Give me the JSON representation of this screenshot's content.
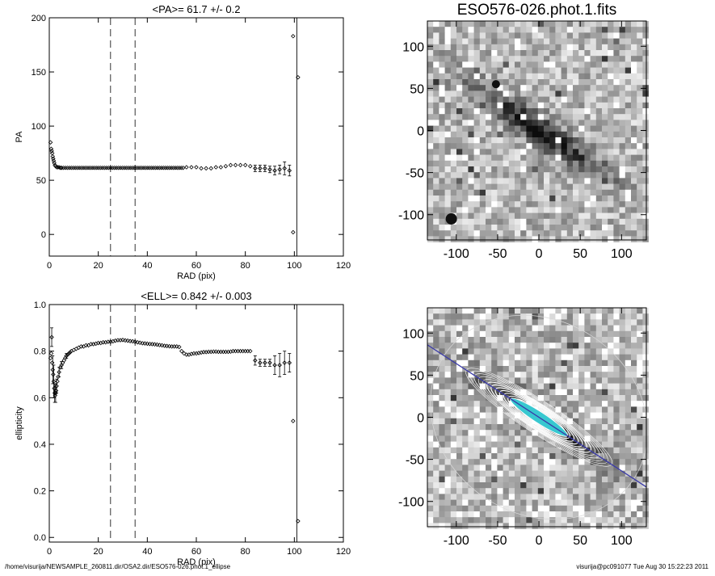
{
  "footer": {
    "path": "/home/visurija/NEWSAMPLE_260811.dir/OSA2.dir/ESO576-026.phot.1_ellipse",
    "stamp": "visurija@pc091077  Tue Aug 30 15:22:23 2011"
  },
  "chart_data": [
    {
      "type": "scatter",
      "title": "<PA>=  61.7 +/-   0.2",
      "xlabel": "RAD (pix)",
      "ylabel": "PA",
      "xlim": [
        0,
        120
      ],
      "ylim": [
        -20,
        200
      ],
      "x_ticks": [
        0,
        20,
        40,
        60,
        80,
        100,
        120
      ],
      "y_ticks": [
        0,
        50,
        100,
        150,
        200
      ],
      "marker": "diamond",
      "error_bars": true,
      "vlines_dashed": [
        25,
        35
      ],
      "vline_solid": 101,
      "dense_points": [
        [
          0.5,
          85
        ],
        [
          0.8,
          79
        ],
        [
          1.0,
          77
        ],
        [
          1.2,
          75
        ],
        [
          1.4,
          72
        ],
        [
          1.6,
          70
        ],
        [
          1.8,
          68
        ],
        [
          2.0,
          66
        ],
        [
          2.3,
          64
        ],
        [
          2.6,
          63
        ],
        [
          3.0,
          62
        ],
        [
          3.5,
          62
        ],
        [
          4.0,
          62
        ],
        [
          4.5,
          61.5
        ],
        [
          5.0,
          61.5
        ]
      ],
      "dense_range": [
        5,
        55
      ],
      "dense_value": 61.5,
      "points": [
        [
          56,
          62
        ],
        [
          58,
          62
        ],
        [
          60,
          62
        ],
        [
          62,
          61
        ],
        [
          64,
          61
        ],
        [
          66,
          61
        ],
        [
          68,
          62
        ],
        [
          70,
          62
        ],
        [
          72,
          63
        ],
        [
          74,
          64
        ],
        [
          76,
          64
        ],
        [
          78,
          64
        ],
        [
          80,
          64
        ],
        [
          82,
          63
        ],
        [
          84,
          61
        ],
        [
          86,
          61
        ],
        [
          88,
          61
        ],
        [
          90,
          60
        ],
        [
          92,
          59
        ],
        [
          94,
          60
        ],
        [
          96,
          61
        ],
        [
          98,
          59
        ]
      ],
      "errors": [
        [
          84,
          3
        ],
        [
          86,
          3
        ],
        [
          88,
          3
        ],
        [
          90,
          3
        ],
        [
          92,
          4
        ],
        [
          94,
          4
        ],
        [
          96,
          6
        ],
        [
          98,
          5
        ]
      ],
      "outliers": [
        [
          99.5,
          183
        ],
        [
          101.5,
          145
        ],
        [
          99.5,
          2
        ]
      ]
    },
    {
      "type": "scatter",
      "title": "<ELL>= 0.842 +/-  0.003",
      "xlabel": "RAD (pix)",
      "ylabel": "ellipticity",
      "xlim": [
        0,
        120
      ],
      "ylim": [
        -0.02,
        1.0
      ],
      "x_ticks": [
        0,
        20,
        40,
        60,
        80,
        100,
        120
      ],
      "y_ticks": [
        0.0,
        0.2,
        0.4,
        0.6,
        0.8,
        1.0
      ],
      "marker": "diamond",
      "error_bars": true,
      "vlines_dashed": [
        25,
        35
      ],
      "vline_solid": 101,
      "points": [
        [
          0.5,
          0.77
        ],
        [
          0.8,
          0.79
        ],
        [
          1.0,
          0.86
        ],
        [
          1.2,
          0.75
        ],
        [
          1.4,
          0.72
        ],
        [
          1.6,
          0.7
        ],
        [
          1.8,
          0.67
        ],
        [
          2.0,
          0.64
        ],
        [
          2.2,
          0.62
        ],
        [
          2.4,
          0.61
        ],
        [
          2.6,
          0.62
        ],
        [
          2.8,
          0.63
        ],
        [
          3.0,
          0.65
        ],
        [
          3.3,
          0.67
        ],
        [
          3.6,
          0.69
        ],
        [
          4.0,
          0.71
        ],
        [
          4.5,
          0.73
        ],
        [
          5.0,
          0.74
        ],
        [
          5.5,
          0.75
        ],
        [
          6.0,
          0.76
        ],
        [
          6.5,
          0.77
        ],
        [
          7.0,
          0.78
        ],
        [
          7.5,
          0.785
        ],
        [
          8.0,
          0.79
        ],
        [
          8.5,
          0.795
        ],
        [
          9,
          0.8
        ],
        [
          10,
          0.805
        ],
        [
          11,
          0.81
        ],
        [
          12,
          0.815
        ],
        [
          13,
          0.82
        ],
        [
          14,
          0.82
        ],
        [
          15,
          0.825
        ],
        [
          16,
          0.825
        ],
        [
          17,
          0.83
        ],
        [
          18,
          0.83
        ],
        [
          19,
          0.832
        ],
        [
          20,
          0.835
        ],
        [
          21,
          0.835
        ],
        [
          22,
          0.838
        ],
        [
          23,
          0.838
        ],
        [
          24,
          0.84
        ],
        [
          25,
          0.84
        ],
        [
          26,
          0.842
        ],
        [
          27,
          0.845
        ],
        [
          28,
          0.847
        ],
        [
          29,
          0.847
        ],
        [
          30,
          0.848
        ],
        [
          31,
          0.846
        ],
        [
          32,
          0.845
        ],
        [
          33,
          0.843
        ],
        [
          34,
          0.842
        ],
        [
          35,
          0.84
        ],
        [
          36,
          0.838
        ],
        [
          37,
          0.836
        ],
        [
          38,
          0.834
        ],
        [
          39,
          0.833
        ],
        [
          40,
          0.832
        ],
        [
          41,
          0.831
        ],
        [
          42,
          0.83
        ],
        [
          43,
          0.829
        ],
        [
          44,
          0.828
        ],
        [
          45,
          0.826
        ],
        [
          46,
          0.825
        ],
        [
          47,
          0.823
        ],
        [
          48,
          0.822
        ],
        [
          49,
          0.821
        ],
        [
          50,
          0.82
        ],
        [
          51,
          0.82
        ],
        [
          52,
          0.82
        ],
        [
          53,
          0.818
        ],
        [
          54,
          0.8
        ],
        [
          55,
          0.79
        ],
        [
          56,
          0.785
        ],
        [
          57,
          0.785
        ],
        [
          58,
          0.788
        ],
        [
          59,
          0.79
        ],
        [
          60,
          0.79
        ],
        [
          61,
          0.792
        ],
        [
          62,
          0.794
        ],
        [
          63,
          0.796
        ],
        [
          64,
          0.796
        ],
        [
          65,
          0.797
        ],
        [
          66,
          0.797
        ],
        [
          67,
          0.798
        ],
        [
          68,
          0.798
        ],
        [
          69,
          0.797
        ],
        [
          70,
          0.797
        ],
        [
          71,
          0.797
        ],
        [
          72,
          0.797
        ],
        [
          73,
          0.797
        ],
        [
          74,
          0.798
        ],
        [
          75,
          0.8
        ],
        [
          76,
          0.8
        ],
        [
          77,
          0.8
        ],
        [
          78,
          0.8
        ],
        [
          79,
          0.8
        ],
        [
          80,
          0.8
        ],
        [
          81,
          0.8
        ],
        [
          82,
          0.8
        ],
        [
          84,
          0.76
        ],
        [
          86,
          0.75
        ],
        [
          88,
          0.75
        ],
        [
          90,
          0.75
        ],
        [
          92,
          0.74
        ],
        [
          94,
          0.74
        ],
        [
          96,
          0.75
        ],
        [
          98,
          0.75
        ]
      ],
      "errors": [
        [
          1.0,
          0.04
        ],
        [
          1.4,
          0.06
        ],
        [
          1.8,
          0.07
        ],
        [
          2.2,
          0.04
        ],
        [
          2.6,
          0.04
        ],
        [
          3.0,
          0.03
        ],
        [
          4.0,
          0.02
        ],
        [
          5.0,
          0.015
        ],
        [
          7.0,
          0.01
        ],
        [
          84,
          0.02
        ],
        [
          86,
          0.015
        ],
        [
          88,
          0.015
        ],
        [
          90,
          0.015
        ],
        [
          92,
          0.04
        ],
        [
          94,
          0.05
        ],
        [
          96,
          0.05
        ],
        [
          98,
          0.04
        ]
      ],
      "outliers": [
        [
          99.5,
          0.5
        ],
        [
          101.5,
          0.07
        ]
      ]
    }
  ],
  "images": {
    "top": {
      "title": "ESO576-026.phot.1.fits",
      "xlim": [
        -135,
        130
      ],
      "ylim": [
        -130,
        130
      ],
      "x_ticks": [
        -100,
        -50,
        0,
        50,
        100
      ],
      "y_ticks": [
        -100,
        -50,
        0,
        50,
        100
      ]
    },
    "bottom": {
      "xlim": [
        -135,
        130
      ],
      "ylim": [
        -130,
        130
      ],
      "x_ticks": [
        -100,
        -50,
        0,
        50,
        100
      ],
      "y_ticks": [
        -100,
        -50,
        0,
        50,
        100
      ],
      "major_axis_pa_deg": 61.7,
      "ellipticity": 0.842,
      "line_color": "#3a3aa8",
      "contour_color": "#ffffff",
      "core_color": "#38c8d0"
    }
  }
}
